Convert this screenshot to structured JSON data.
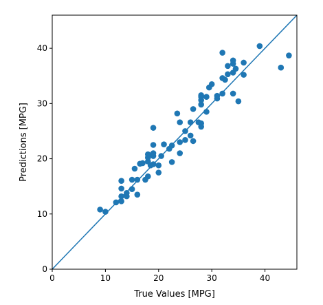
{
  "chart_data": {
    "type": "scatter",
    "xlabel": "True Values [MPG]",
    "ylabel": "Predictions [MPG]",
    "xlim": [
      0,
      46
    ],
    "ylim": [
      0,
      46
    ],
    "xticks": [
      0,
      10,
      20,
      30,
      40
    ],
    "yticks": [
      0,
      10,
      20,
      30,
      40
    ],
    "grid": false,
    "point_color": "#1f77b4",
    "line_color": "#1f77b4",
    "reference_line": {
      "x": [
        0,
        46
      ],
      "y": [
        0,
        46
      ]
    },
    "points": [
      [
        9.0,
        10.8
      ],
      [
        10.0,
        10.4
      ],
      [
        12.0,
        12.1
      ],
      [
        13.0,
        12.3
      ],
      [
        13.0,
        13.2
      ],
      [
        13.0,
        14.6
      ],
      [
        13.0,
        16.0
      ],
      [
        14.0,
        13.2
      ],
      [
        14.0,
        13.8
      ],
      [
        15.0,
        14.5
      ],
      [
        15.0,
        16.2
      ],
      [
        16.0,
        13.5
      ],
      [
        16.0,
        16.2
      ],
      [
        15.5,
        18.2
      ],
      [
        16.5,
        19.1
      ],
      [
        17.0,
        19.2
      ],
      [
        17.5,
        16.2
      ],
      [
        18.0,
        16.8
      ],
      [
        18.0,
        19.5
      ],
      [
        18.0,
        20.2
      ],
      [
        18.0,
        20.8
      ],
      [
        18.5,
        18.8
      ],
      [
        19.0,
        19.0
      ],
      [
        19.0,
        20.5
      ],
      [
        19.0,
        21.0
      ],
      [
        19.0,
        22.5
      ],
      [
        19.0,
        25.6
      ],
      [
        20.0,
        17.5
      ],
      [
        20.0,
        18.8
      ],
      [
        20.5,
        20.5
      ],
      [
        21.0,
        22.6
      ],
      [
        22.0,
        21.8
      ],
      [
        22.5,
        22.4
      ],
      [
        22.5,
        19.4
      ],
      [
        23.5,
        28.2
      ],
      [
        24.0,
        26.6
      ],
      [
        24.0,
        23.0
      ],
      [
        24.0,
        21.0
      ],
      [
        25.0,
        23.4
      ],
      [
        25.0,
        25.0
      ],
      [
        26.0,
        24.2
      ],
      [
        26.0,
        26.6
      ],
      [
        26.5,
        23.2
      ],
      [
        26.5,
        29.0
      ],
      [
        27.5,
        26.6
      ],
      [
        28.0,
        25.8
      ],
      [
        28.0,
        26.4
      ],
      [
        28.0,
        29.8
      ],
      [
        28.0,
        30.6
      ],
      [
        28.0,
        31.2
      ],
      [
        28.0,
        31.5
      ],
      [
        29.0,
        28.5
      ],
      [
        29.0,
        31.2
      ],
      [
        29.5,
        32.9
      ],
      [
        30.0,
        33.5
      ],
      [
        31.0,
        30.9
      ],
      [
        31.0,
        31.4
      ],
      [
        32.0,
        31.8
      ],
      [
        32.0,
        34.6
      ],
      [
        32.0,
        39.2
      ],
      [
        32.5,
        34.3
      ],
      [
        33.0,
        35.3
      ],
      [
        33.0,
        36.8
      ],
      [
        34.0,
        31.8
      ],
      [
        34.0,
        35.6
      ],
      [
        34.0,
        37.2
      ],
      [
        34.0,
        37.8
      ],
      [
        34.5,
        36.3
      ],
      [
        35.0,
        30.4
      ],
      [
        36.0,
        35.2
      ],
      [
        36.0,
        37.4
      ],
      [
        39.0,
        40.4
      ],
      [
        43.0,
        36.5
      ],
      [
        44.5,
        38.7
      ]
    ]
  }
}
